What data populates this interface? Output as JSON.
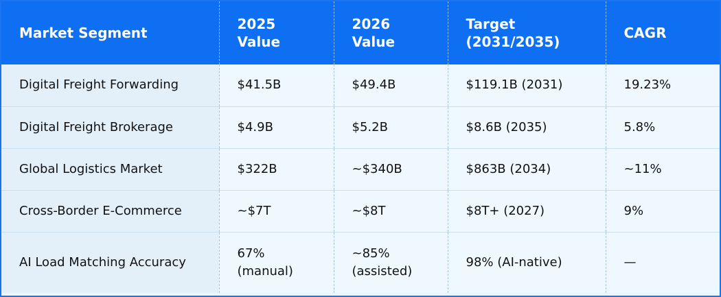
{
  "table": {
    "headers": [
      [
        "Market Segment"
      ],
      [
        "2025",
        "Value"
      ],
      [
        "2026",
        "Value"
      ],
      [
        "Target",
        "(2031/2035)"
      ],
      [
        "CAGR"
      ]
    ],
    "rows": [
      {
        "segment": "Digital Freight Forwarding",
        "v2025": [
          "$41.5B"
        ],
        "v2026": [
          "$49.4B"
        ],
        "target": "$119.1B (2031)",
        "cagr": "19.23%"
      },
      {
        "segment": "Digital Freight Brokerage",
        "v2025": [
          "$4.9B"
        ],
        "v2026": [
          "$5.2B"
        ],
        "target": "$8.6B (2035)",
        "cagr": "5.8%"
      },
      {
        "segment": "Global Logistics Market",
        "v2025": [
          "$322B"
        ],
        "v2026": [
          "~$340B"
        ],
        "target": "$863B (2034)",
        "cagr": "~11%"
      },
      {
        "segment": "Cross-Border E-Commerce",
        "v2025": [
          "~$7T"
        ],
        "v2026": [
          "~$8T"
        ],
        "target": "$8T+ (2027)",
        "cagr": "9%"
      },
      {
        "segment": "AI Load Matching Accuracy",
        "v2025": [
          "67%",
          "(manual)"
        ],
        "v2026": [
          "~85%",
          "(assisted)"
        ],
        "target": "98% (AI-native)",
        "cagr": "—"
      }
    ]
  }
}
